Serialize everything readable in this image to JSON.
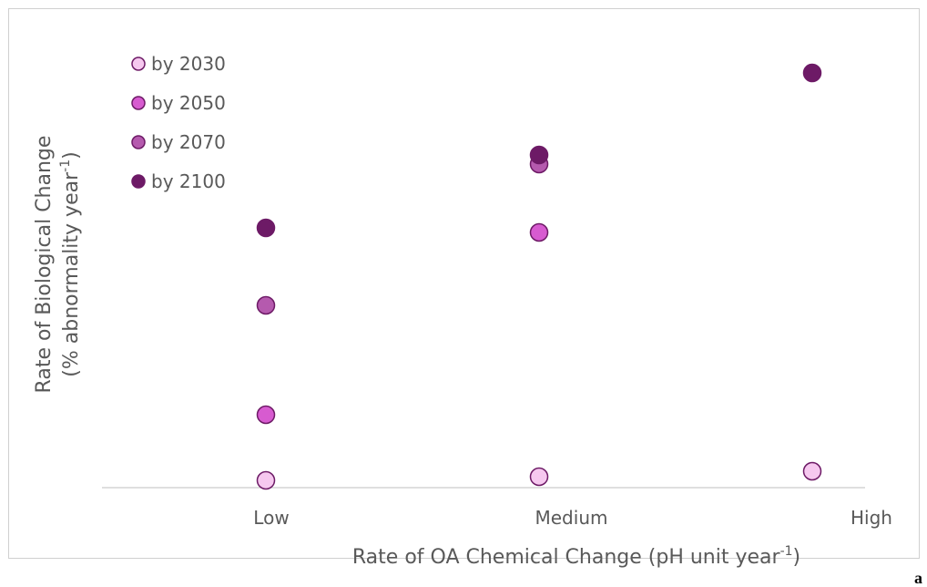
{
  "chart_data": {
    "type": "scatter",
    "x_label": {
      "text": "Rate of OA Chemical Change (pH unit year",
      "sup": "-1",
      "end": ")"
    },
    "y_label": {
      "line1": "Rate of Biological Change",
      "text": "(% abnormality year",
      "sup": "-1",
      "end": ")"
    },
    "categories": [
      "Low",
      "Medium",
      "High"
    ],
    "series": [
      {
        "name": "by 2030",
        "color": "#f6c8ef",
        "values": [
          1.6,
          2.4,
          3.6
        ]
      },
      {
        "name": "by 2050",
        "color": "#d75bd0",
        "values": [
          16,
          56,
          null
        ]
      },
      {
        "name": "by 2070",
        "color": "#b55aae",
        "values": [
          40,
          71,
          null
        ]
      },
      {
        "name": "by 2100",
        "color": "#6d1a66",
        "values": [
          57,
          73,
          91
        ]
      }
    ],
    "ylim": [
      0,
      100
    ],
    "legend": "top-left",
    "panel_label": "a"
  }
}
